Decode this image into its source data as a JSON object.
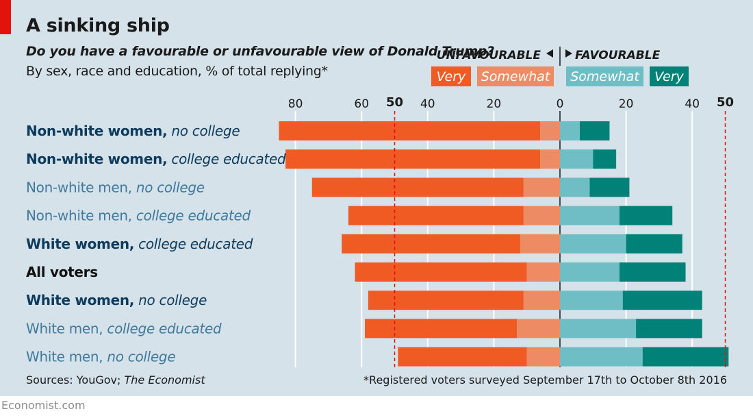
{
  "title": "A sinking ship",
  "subtitle": "Do you have a favourable or unfavourable view of Donald Trump?",
  "note": "By sex, race and education, % of total replying*",
  "source_prefix": "Sources: YouGov; ",
  "source_italic": "The Economist",
  "footnote": "*Registered voters surveyed September 17th to October 8th 2016",
  "credit": "Economist.com",
  "colors": {
    "unfav_very": "#f05a23",
    "unfav_somewhat": "#ed8c64",
    "fav_somewhat": "#6fbdc5",
    "fav_very": "#018177",
    "reference_line": "#e3120b",
    "label_dark": "#0d3b5e",
    "label_light": "#3f7a9d",
    "label_black": "#111111"
  },
  "chart_data": {
    "type": "bar",
    "orientation": "horizontal-diverging",
    "legend": {
      "unfavourable_label": "UNFAVOURABLE",
      "favourable_label": "FAVOURABLE",
      "items": [
        "Very",
        "Somewhat",
        "Somewhat",
        "Very"
      ]
    },
    "x_ticks": [
      "80",
      "60",
      "40",
      "20",
      "0",
      "20",
      "40"
    ],
    "x_tick_values": [
      -80,
      -60,
      -40,
      -20,
      0,
      20,
      40
    ],
    "reference_lines": [
      {
        "label": "50",
        "value": -50
      },
      {
        "label": "50",
        "value": 50
      }
    ],
    "xlim": [
      -87,
      52
    ],
    "categories": [
      {
        "main": "Non-white women,",
        "qualifier": "no college",
        "tone": "dark"
      },
      {
        "main": "Non-white women,",
        "qualifier": "college educated",
        "tone": "dark"
      },
      {
        "main": "Non-white men,",
        "qualifier": "no college",
        "tone": "light"
      },
      {
        "main": "Non-white men,",
        "qualifier": "college educated",
        "tone": "light"
      },
      {
        "main": "White women,",
        "qualifier": "college educated",
        "tone": "dark"
      },
      {
        "main": "All voters",
        "qualifier": "",
        "tone": "black"
      },
      {
        "main": "White women,",
        "qualifier": "no college",
        "tone": "dark"
      },
      {
        "main": "White men,",
        "qualifier": "college educated",
        "tone": "light"
      },
      {
        "main": "White men,",
        "qualifier": "no college",
        "tone": "light"
      }
    ],
    "series": [
      {
        "name": "Unfavourable: Very",
        "values": [
          79,
          77,
          64,
          53,
          54,
          52,
          47,
          46,
          39
        ]
      },
      {
        "name": "Unfavourable: Somewhat",
        "values": [
          6,
          6,
          11,
          11,
          12,
          10,
          11,
          13,
          10
        ]
      },
      {
        "name": "Favourable: Somewhat",
        "values": [
          6,
          10,
          9,
          18,
          20,
          18,
          19,
          23,
          25
        ]
      },
      {
        "name": "Favourable: Very",
        "values": [
          9,
          7,
          12,
          16,
          17,
          20,
          24,
          20,
          26
        ]
      }
    ]
  }
}
